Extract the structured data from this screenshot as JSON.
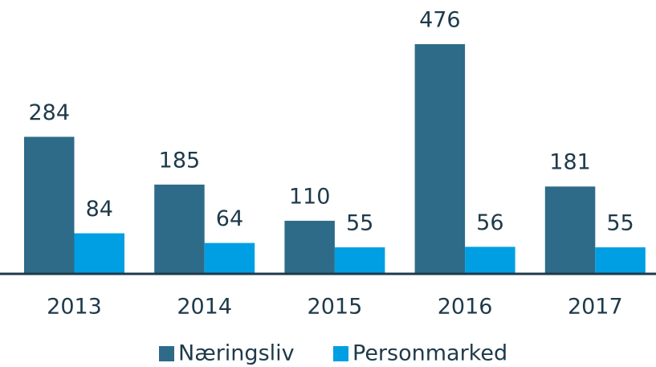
{
  "chart_data": {
    "type": "bar",
    "categories": [
      "2013",
      "2014",
      "2015",
      "2016",
      "2017"
    ],
    "series": [
      {
        "name": "Næringsliv",
        "color": "#2e6b88",
        "values": [
          284,
          185,
          110,
          476,
          181
        ]
      },
      {
        "name": "Personmarked",
        "color": "#009fe3",
        "values": [
          84,
          64,
          55,
          56,
          55
        ]
      }
    ],
    "legend": "bottom"
  }
}
